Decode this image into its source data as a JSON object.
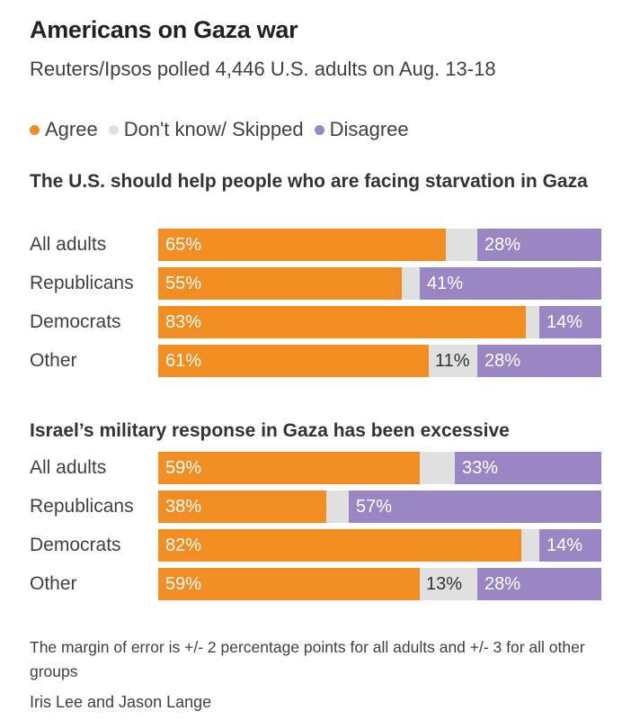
{
  "title": "Americans on Gaza war",
  "subtitle": "Reuters/Ipsos polled 4,446 U.S. adults on Aug. 13-18",
  "legend": [
    {
      "label": "Agree",
      "color": "#f28d22"
    },
    {
      "label": "Don't know/ Skipped",
      "color": "#e0e0e0"
    },
    {
      "label": "Disagree",
      "color": "#9a86c2"
    }
  ],
  "chart_data": [
    {
      "type": "bar",
      "stacked": true,
      "orientation": "horizontal",
      "title": "The U.S. should help people who are facing starvation in Gaza",
      "categories": [
        "All adults",
        "Republicans",
        "Democrats",
        "Other"
      ],
      "series": [
        {
          "name": "Agree",
          "values": [
            65,
            55,
            83,
            61
          ],
          "labels": [
            "65%",
            "55%",
            "83%",
            "61%"
          ]
        },
        {
          "name": "Don't know/ Skipped",
          "values": [
            7,
            4,
            3,
            11
          ],
          "labels": [
            "",
            "",
            "",
            "11%"
          ]
        },
        {
          "name": "Disagree",
          "values": [
            28,
            41,
            14,
            28
          ],
          "labels": [
            "28%",
            "41%",
            "14%",
            "28%"
          ]
        }
      ],
      "xlim": [
        0,
        100
      ]
    },
    {
      "type": "bar",
      "stacked": true,
      "orientation": "horizontal",
      "title": "Israel’s military response in Gaza has been excessive",
      "categories": [
        "All adults",
        "Republicans",
        "Democrats",
        "Other"
      ],
      "series": [
        {
          "name": "Agree",
          "values": [
            59,
            38,
            82,
            59
          ],
          "labels": [
            "59%",
            "38%",
            "82%",
            "59%"
          ]
        },
        {
          "name": "Don't know/ Skipped",
          "values": [
            8,
            5,
            4,
            13
          ],
          "labels": [
            "",
            "",
            "",
            "13%"
          ]
        },
        {
          "name": "Disagree",
          "values": [
            33,
            57,
            14,
            28
          ],
          "labels": [
            "33%",
            "57%",
            "14%",
            "28%"
          ]
        }
      ],
      "xlim": [
        0,
        100
      ]
    }
  ],
  "footnote": "The margin of error is +/- 2 percentage points for all adults and +/- 3 for all other groups",
  "credit": "Iris Lee and Jason Lange"
}
